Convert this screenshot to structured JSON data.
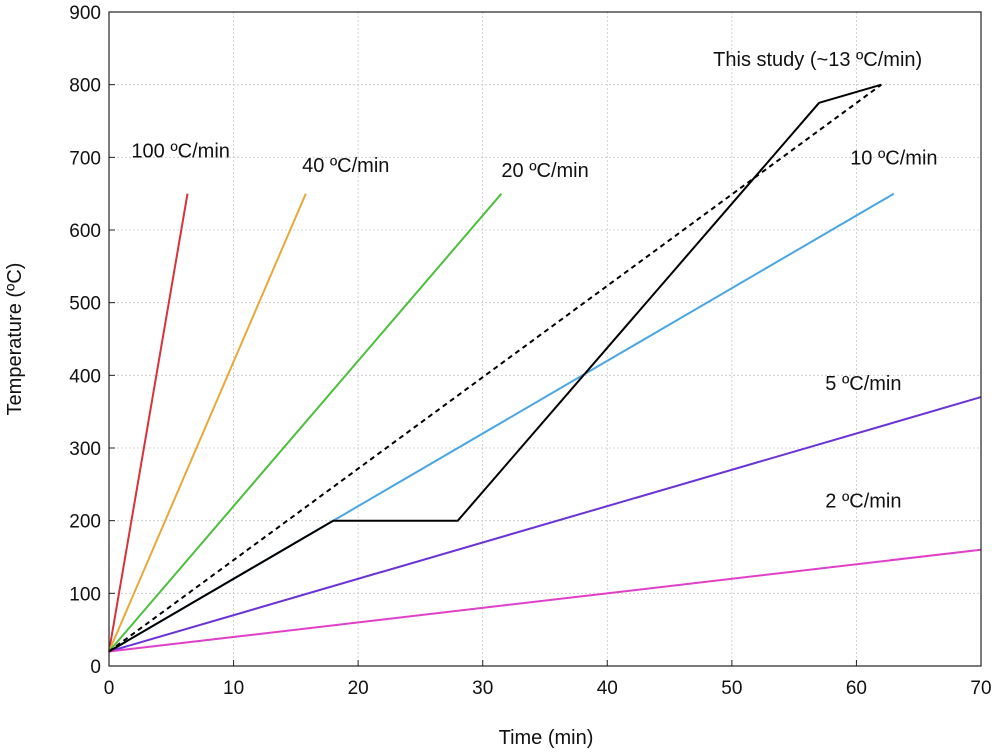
{
  "chart_data": {
    "type": "line",
    "xlabel": "Time (min)",
    "ylabel": "Temperature (ºC)",
    "xlim": [
      0,
      70
    ],
    "ylim": [
      0,
      900
    ],
    "xticks": [
      0,
      10,
      20,
      30,
      40,
      50,
      60,
      70
    ],
    "yticks": [
      0,
      100,
      200,
      300,
      400,
      500,
      600,
      700,
      800,
      900
    ],
    "grid": true,
    "legend": "none",
    "series": [
      {
        "name": "100 ºC/min",
        "color": "#d6343a",
        "dashed": false,
        "points": [
          [
            0,
            20
          ],
          [
            6.3,
            650
          ]
        ]
      },
      {
        "name": "40 ºC/min",
        "color": "#e8a83a",
        "dashed": false,
        "points": [
          [
            0,
            20
          ],
          [
            15.8,
            650
          ]
        ]
      },
      {
        "name": "20 ºC/min",
        "color": "#4cc03c",
        "dashed": false,
        "points": [
          [
            0,
            20
          ],
          [
            31.5,
            650
          ]
        ]
      },
      {
        "name": "10 ºC/min",
        "color": "#49a6e6",
        "dashed": false,
        "points": [
          [
            0,
            20
          ],
          [
            63,
            650
          ]
        ]
      },
      {
        "name": "5 ºC/min",
        "color": "#6a33d8",
        "dashed": false,
        "points": [
          [
            0,
            20
          ],
          [
            70,
            370
          ]
        ]
      },
      {
        "name": "2 ºC/min",
        "color": "#e040c8",
        "dashed": false,
        "points": [
          [
            0,
            20
          ],
          [
            70,
            160
          ]
        ]
      },
      {
        "name": "This study (~13 ºC/min)",
        "color": "#000000",
        "dashed": false,
        "points": [
          [
            0,
            20
          ],
          [
            18,
            200
          ],
          [
            28,
            200
          ],
          [
            57,
            775
          ],
          [
            62,
            800
          ]
        ]
      },
      {
        "name": "",
        "color": "#000000",
        "dashed": true,
        "points": [
          [
            0,
            20
          ],
          [
            62,
            800
          ]
        ]
      }
    ],
    "annotations": [
      {
        "text": "100 ºC/min",
        "x": 1.8,
        "y": 700
      },
      {
        "text": "40 ºC/min",
        "x": 15.5,
        "y": 680
      },
      {
        "text": "20 ºC/min",
        "x": 31.5,
        "y": 673
      },
      {
        "text": "10 ºC/min",
        "x": 59.5,
        "y": 690
      },
      {
        "text": "This study (~13 ºC/min)",
        "x": 48.5,
        "y": 826
      },
      {
        "text": "5 ºC/min",
        "x": 57.5,
        "y": 380
      },
      {
        "text": "2 ºC/min",
        "x": 57.5,
        "y": 218
      }
    ]
  }
}
